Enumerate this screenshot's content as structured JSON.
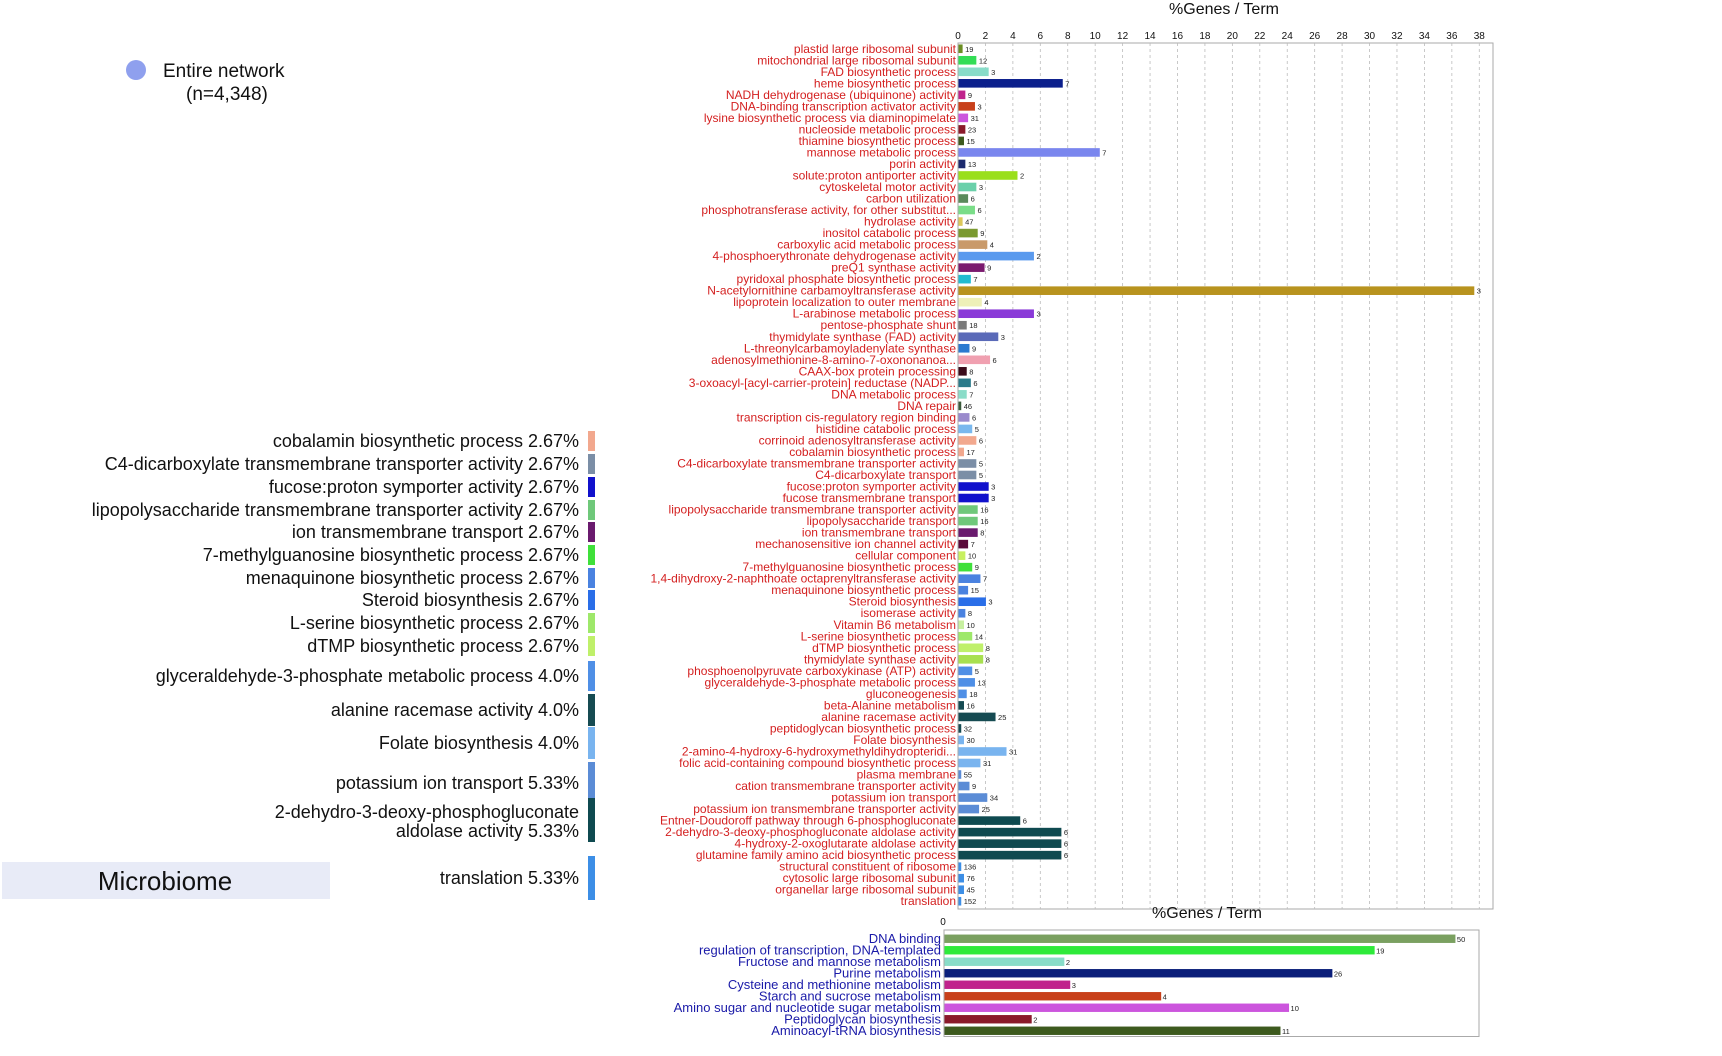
{
  "legend": {
    "entry_label": "Entire network",
    "entry_count": "(n=4,348)",
    "entry_color": "#8fa0ee"
  },
  "pie_legend": [
    {
      "label": "cobalamin biosynthetic process 2.67%",
      "color": "#f2a88e"
    },
    {
      "label": "C4-dicarboxylate transmembrane transporter activity 2.67%",
      "color": "#7b8ea6"
    },
    {
      "label": "fucose:proton symporter activity 2.67%",
      "color": "#1111cc"
    },
    {
      "label": "lipopolysaccharide transmembrane transporter activity 2.67%",
      "color": "#6fc87a"
    },
    {
      "label": "ion transmembrane transport 2.67%",
      "color": "#6a1a6e"
    },
    {
      "label": "7-methylguanosine biosynthetic process 2.67%",
      "color": "#3fe03a"
    },
    {
      "label": "menaquinone biosynthetic process 2.67%",
      "color": "#4a82e0"
    },
    {
      "label": "Steroid biosynthesis 2.67%",
      "color": "#2a6ee8"
    },
    {
      "label": "L-serine biosynthetic process 2.67%",
      "color": "#9ee86a"
    },
    {
      "label": "dTMP biosynthetic process 2.67%",
      "color": "#bff06a"
    },
    {
      "label": "glyceraldehyde-3-phosphate metabolic process 4.0%",
      "color": "#4f8fe6"
    },
    {
      "label": "alanine racemase activity 4.0%",
      "color": "#164b52"
    },
    {
      "label": "Folate biosynthesis 4.0%",
      "color": "#79b4ef"
    },
    {
      "label": "potassium ion transport 5.33%",
      "color": "#5b8cd6"
    },
    {
      "label": "2-dehydro-3-deoxy-phosphogluconate",
      "label2": "aldolase activity 5.33%",
      "color": "#0f4a50"
    },
    {
      "label": "translation 5.33%",
      "color": "#3c8ee6"
    }
  ],
  "microbiome_label": "Microbiome",
  "chart_data": [
    {
      "type": "bar",
      "orientation": "horizontal",
      "title": "%Genes / Term",
      "xlim": [
        0,
        39
      ],
      "xticks": [
        0,
        2,
        4,
        6,
        8,
        10,
        12,
        14,
        16,
        18,
        20,
        22,
        24,
        26,
        28,
        30,
        32,
        34,
        36,
        38
      ],
      "grid": true,
      "label_color": "#d42020",
      "bars": [
        {
          "label": "plastid large ribosomal subunit",
          "value": 0.3,
          "count": "19",
          "color": "#6b8e23"
        },
        {
          "label": "mitochondrial large ribosomal subunit",
          "value": 1.3,
          "count": "12",
          "color": "#33dd55"
        },
        {
          "label": "FAD biosynthetic process",
          "value": 2.2,
          "count": "3",
          "color": "#88dcc8"
        },
        {
          "label": "heme biosynthetic process",
          "value": 7.6,
          "count": "7",
          "color": "#0b1f8c"
        },
        {
          "label": "NADH dehydrogenase (ubiquinone) activity",
          "value": 0.5,
          "count": "9",
          "color": "#c0238c"
        },
        {
          "label": "DNA-binding transcription activator activity",
          "value": 1.2,
          "count": "3",
          "color": "#c8401a"
        },
        {
          "label": "lysine biosynthetic process via diaminopimelate",
          "value": 0.7,
          "count": "31",
          "color": "#cc55dd"
        },
        {
          "label": "nucleoside metabolic process",
          "value": 0.5,
          "count": "23",
          "color": "#8a1a2a"
        },
        {
          "label": "thiamine biosynthetic process",
          "value": 0.4,
          "count": "15",
          "color": "#3d5a1e"
        },
        {
          "label": "mannose metabolic process",
          "value": 10.3,
          "count": "7",
          "color": "#7a86ee"
        },
        {
          "label": "porin activity",
          "value": 0.5,
          "count": "13",
          "color": "#1c2a6e"
        },
        {
          "label": "solute:proton antiporter activity",
          "value": 4.3,
          "count": "2",
          "color": "#9adf1c"
        },
        {
          "label": "cytoskeletal motor activity",
          "value": 1.3,
          "count": "3",
          "color": "#6ad0aa"
        },
        {
          "label": "carbon utilization",
          "value": 0.7,
          "count": "6",
          "color": "#5a8a5a"
        },
        {
          "label": "phosphotransferase activity, for other substitut...",
          "value": 1.2,
          "count": "6",
          "color": "#7add88"
        },
        {
          "label": "hydrolase activity",
          "value": 0.3,
          "count": "47",
          "color": "#dcc85a"
        },
        {
          "label": "inositol catabolic process",
          "value": 1.4,
          "count": "9",
          "color": "#7a9a30"
        },
        {
          "label": "carboxylic acid metabolic process",
          "value": 2.1,
          "count": "4",
          "color": "#c99a6a"
        },
        {
          "label": "4-phosphoerythronate dehydrogenase activity",
          "value": 5.5,
          "count": "2",
          "color": "#5a9aee"
        },
        {
          "label": "preQ1 synthase activity",
          "value": 1.9,
          "count": "9",
          "color": "#7a1a6e"
        },
        {
          "label": "pyridoxal phosphate biosynthetic process",
          "value": 0.9,
          "count": "7",
          "color": "#22bcd0"
        },
        {
          "label": "N-acetylornithine carbamoyltransferase activity",
          "value": 37.6,
          "count": "3",
          "color": "#b8931e"
        },
        {
          "label": "lipoprotein localization to outer membrane",
          "value": 1.7,
          "count": "4",
          "color": "#eef0b8"
        },
        {
          "label": "L-arabinose metabolic process",
          "value": 5.5,
          "count": "3",
          "color": "#8a3ad8"
        },
        {
          "label": "pentose-phosphate shunt",
          "value": 0.6,
          "count": "18",
          "color": "#7a7a7a"
        },
        {
          "label": "thymidylate synthase (FAD) activity",
          "value": 2.9,
          "count": "3",
          "color": "#5a6ab8"
        },
        {
          "label": "L-threonylcarbamoyladenylate synthase",
          "value": 0.8,
          "count": "9",
          "color": "#2a7ad0"
        },
        {
          "label": "adenosylmethionine-8-amino-7-oxononanoa...",
          "value": 2.3,
          "count": "6",
          "color": "#f0a0b0"
        },
        {
          "label": "CAAX-box protein processing",
          "value": 0.6,
          "count": "8",
          "color": "#3a0a1a"
        },
        {
          "label": "3-oxoacyl-[acyl-carrier-protein] reductase (NADP...",
          "value": 0.9,
          "count": "6",
          "color": "#2a7a8a"
        },
        {
          "label": "DNA metabolic process",
          "value": 0.6,
          "count": "7",
          "color": "#8adcc8"
        },
        {
          "label": "DNA repair",
          "value": 0.2,
          "count": "46",
          "color": "#3a5a3a"
        },
        {
          "label": "transcription cis-regulatory region binding",
          "value": 0.8,
          "count": "6",
          "color": "#9a8acc"
        },
        {
          "label": "histidine catabolic process",
          "value": 1.0,
          "count": "5",
          "color": "#7ab8ee"
        },
        {
          "label": "corrinoid adenosyltransferase activity",
          "value": 1.3,
          "count": "6",
          "color": "#f2a88e"
        },
        {
          "label": "cobalamin biosynthetic process",
          "value": 0.4,
          "count": "17",
          "color": "#f2a88e"
        },
        {
          "label": "C4-dicarboxylate transmembrane transporter activity",
          "value": 1.3,
          "count": "5",
          "color": "#7b8ea6"
        },
        {
          "label": "C4-dicarboxylate transport",
          "value": 1.3,
          "count": "5",
          "color": "#7b8ea6"
        },
        {
          "label": "fucose:proton symporter activity",
          "value": 2.2,
          "count": "3",
          "color": "#1111cc"
        },
        {
          "label": "fucose transmembrane transport",
          "value": 2.2,
          "count": "3",
          "color": "#1111cc"
        },
        {
          "label": "lipopolysaccharide transmembrane transporter activity",
          "value": 1.4,
          "count": "16",
          "color": "#6fc87a"
        },
        {
          "label": "lipopolysaccharide transport",
          "value": 1.4,
          "count": "16",
          "color": "#6fc87a"
        },
        {
          "label": "ion transmembrane transport",
          "value": 1.4,
          "count": "8",
          "color": "#6a1a6e"
        },
        {
          "label": "mechanosensitive ion channel activity",
          "value": 0.7,
          "count": "7",
          "color": "#5a0a3a"
        },
        {
          "label": "cellular component",
          "value": 0.5,
          "count": "10",
          "color": "#c8f060"
        },
        {
          "label": "7-methylguanosine biosynthetic process",
          "value": 1.0,
          "count": "9",
          "color": "#3fe03a"
        },
        {
          "label": "1,4-dihydroxy-2-naphthoate octaprenyltransferase activity",
          "value": 1.6,
          "count": "7",
          "color": "#4a82e0"
        },
        {
          "label": "menaquinone biosynthetic process",
          "value": 0.7,
          "count": "15",
          "color": "#4a82e0"
        },
        {
          "label": "Steroid biosynthesis",
          "value": 2.0,
          "count": "3",
          "color": "#2a6ee8"
        },
        {
          "label": "isomerase activity",
          "value": 0.5,
          "count": "8",
          "color": "#4a82e0"
        },
        {
          "label": "Vitamin B6 metabolism",
          "value": 0.4,
          "count": "10",
          "color": "#c8f0a0"
        },
        {
          "label": "L-serine biosynthetic process",
          "value": 1.0,
          "count": "14",
          "color": "#9ee86a"
        },
        {
          "label": "dTMP biosynthetic process",
          "value": 1.8,
          "count": "8",
          "color": "#bff06a"
        },
        {
          "label": "thymidylate synthase activity",
          "value": 1.8,
          "count": "8",
          "color": "#a8e050"
        },
        {
          "label": "phosphoenolpyruvate carboxykinase (ATP) activity",
          "value": 1.0,
          "count": "5",
          "color": "#4f8fe6"
        },
        {
          "label": "glyceraldehyde-3-phosphate metabolic process",
          "value": 1.2,
          "count": "13",
          "color": "#4f8fe6"
        },
        {
          "label": "gluconeogenesis",
          "value": 0.6,
          "count": "18",
          "color": "#4f8fe6"
        },
        {
          "label": "beta-Alanine metabolism",
          "value": 0.4,
          "count": "16",
          "color": "#164b52"
        },
        {
          "label": "alanine racemase activity",
          "value": 2.7,
          "count": "25",
          "color": "#164b52"
        },
        {
          "label": "peptidoglycan biosynthetic process",
          "value": 0.2,
          "count": "32",
          "color": "#164b52"
        },
        {
          "label": "Folate biosynthesis",
          "value": 0.4,
          "count": "30",
          "color": "#79b4ef"
        },
        {
          "label": "2-amino-4-hydroxy-6-hydroxymethyldihydropteridi...",
          "value": 3.5,
          "count": "31",
          "color": "#79b4ef"
        },
        {
          "label": "folic acid-containing compound biosynthetic process",
          "value": 1.6,
          "count": "31",
          "color": "#79b4ef"
        },
        {
          "label": "plasma membrane",
          "value": 0.2,
          "count": "55",
          "color": "#5b8cd6"
        },
        {
          "label": "cation transmembrane transporter activity",
          "value": 0.8,
          "count": "9",
          "color": "#5b8cd6"
        },
        {
          "label": "potassium ion transport",
          "value": 2.1,
          "count": "34",
          "color": "#5b8cd6"
        },
        {
          "label": "potassium ion transmembrane transporter activity",
          "value": 1.5,
          "count": "25",
          "color": "#5b8cd6"
        },
        {
          "label": "Entner-Doudoroff pathway through 6-phosphogluconate",
          "value": 4.5,
          "count": "6",
          "color": "#0f4a50"
        },
        {
          "label": "2-dehydro-3-deoxy-phosphogluconate aldolase activity",
          "value": 7.5,
          "count": "6",
          "color": "#0f4a50"
        },
        {
          "label": "4-hydroxy-2-oxoglutarate aldolase activity",
          "value": 7.5,
          "count": "6",
          "color": "#0f4a50"
        },
        {
          "label": "glutamine family amino acid biosynthetic process",
          "value": 7.5,
          "count": "6",
          "color": "#0f4a50"
        },
        {
          "label": "structural constituent of ribosome",
          "value": 0.2,
          "count": "136",
          "color": "#3c8ee6"
        },
        {
          "label": "cytosolic large ribosomal subunit",
          "value": 0.4,
          "count": "76",
          "color": "#3c8ee6"
        },
        {
          "label": "organellar large ribosomal subunit",
          "value": 0.4,
          "count": "45",
          "color": "#3c8ee6"
        },
        {
          "label": "translation",
          "value": 0.2,
          "count": "152",
          "color": "#3c8ee6"
        }
      ]
    },
    {
      "type": "bar",
      "orientation": "horizontal",
      "title": "%Genes / Term",
      "xlim": [
        0,
        100
      ],
      "xticks": [
        0
      ],
      "label_color": "#1a1aa8",
      "bars": [
        {
          "label": "DNA binding",
          "value": 95.5,
          "count": "50",
          "color": "#7aa060"
        },
        {
          "label": "regulation of transcription, DNA-templated",
          "value": 80.4,
          "count": "19",
          "color": "#2eea3a"
        },
        {
          "label": "Fructose and mannose metabolism",
          "value": 22.4,
          "count": "2",
          "color": "#88dcc8"
        },
        {
          "label": "Purine metabolism",
          "value": 72.5,
          "count": "26",
          "color": "#0b1f7a"
        },
        {
          "label": "Cysteine and methionine metabolism",
          "value": 23.5,
          "count": "3",
          "color": "#c0238c"
        },
        {
          "label": "Starch and sucrose metabolism",
          "value": 40.5,
          "count": "4",
          "color": "#c8401a"
        },
        {
          "label": "Amino sugar and nucleotide sugar metabolism",
          "value": 64.4,
          "count": "10",
          "color": "#cc55dd"
        },
        {
          "label": "Peptidoglycan biosynthesis",
          "value": 16.3,
          "count": "2",
          "color": "#8a1a2a"
        },
        {
          "label": "Aminoacyl-tRNA biosynthesis",
          "value": 62.8,
          "count": "11",
          "color": "#3d5a1e"
        }
      ]
    }
  ]
}
